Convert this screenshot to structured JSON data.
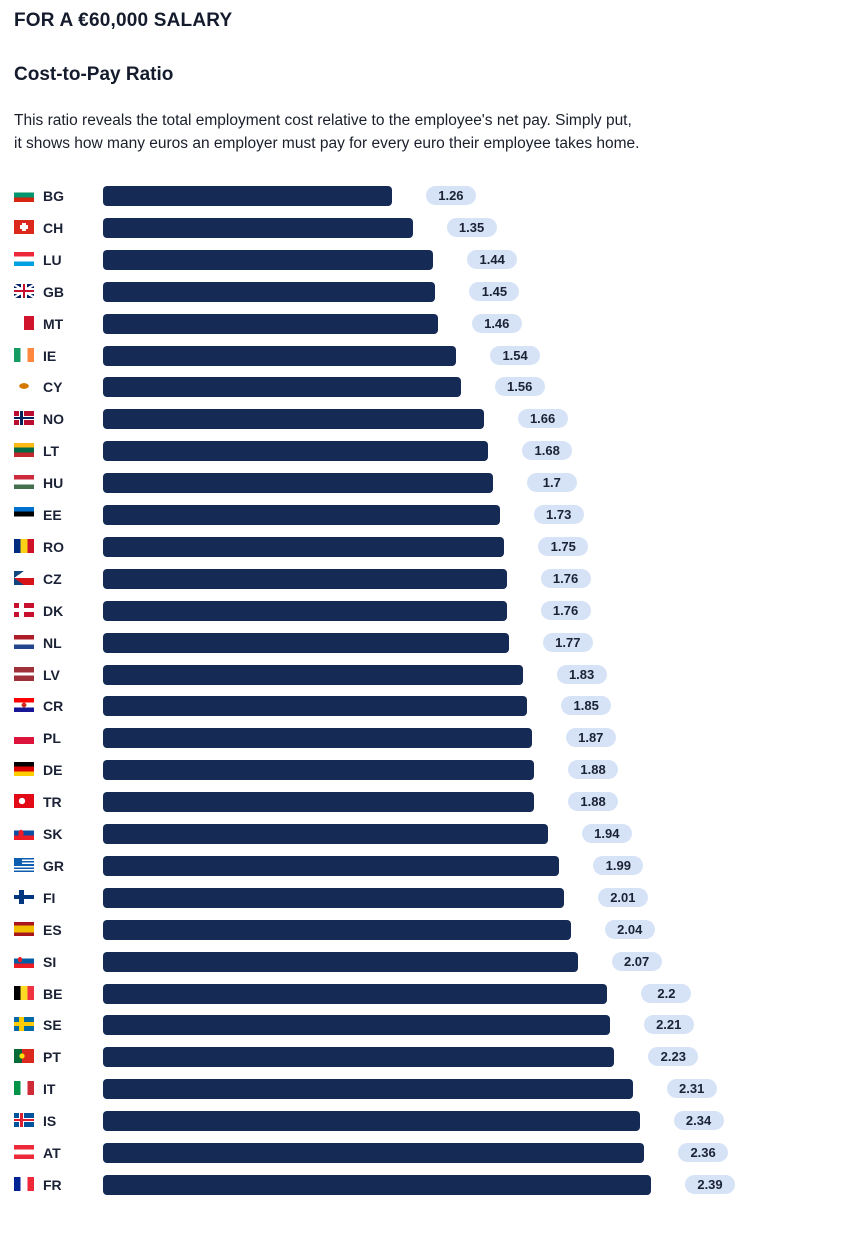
{
  "header": {
    "eyebrow": "FOR A €60,000 SALARY",
    "title": "Cost-to-Pay Ratio",
    "description_line1": "This ratio reveals the total employment cost relative to the employee's net pay. Simply put,",
    "description_line2": "it shows how many euros an employer must pay for every euro their employee takes home."
  },
  "colors": {
    "bar": "#152a55",
    "pill": "#d6e3f7",
    "text": "#141b2d"
  },
  "chart_data": {
    "type": "bar",
    "orientation": "horizontal",
    "title": "",
    "xlabel": "",
    "ylabel": "",
    "xlim": [
      0,
      2.5
    ],
    "grid": false,
    "categories": [
      "BG",
      "CH",
      "LU",
      "GB",
      "MT",
      "IE",
      "CY",
      "NO",
      "LT",
      "HU",
      "EE",
      "RO",
      "CZ",
      "DK",
      "NL",
      "LV",
      "CR",
      "PL",
      "DE",
      "TR",
      "SK",
      "GR",
      "FI",
      "ES",
      "SI",
      "BE",
      "SE",
      "PT",
      "IT",
      "IS",
      "AT",
      "FR"
    ],
    "values": [
      1.26,
      1.35,
      1.44,
      1.45,
      1.46,
      1.54,
      1.56,
      1.66,
      1.68,
      1.7,
      1.73,
      1.75,
      1.76,
      1.76,
      1.77,
      1.83,
      1.85,
      1.87,
      1.88,
      1.88,
      1.94,
      1.99,
      2.01,
      2.04,
      2.07,
      2.2,
      2.21,
      2.23,
      2.31,
      2.34,
      2.36,
      2.39
    ],
    "value_labels": [
      "1.26",
      "1.35",
      "1.44",
      "1.45",
      "1.46",
      "1.54",
      "1.56",
      "1.66",
      "1.68",
      "1.7",
      "1.73",
      "1.75",
      "1.76",
      "1.76",
      "1.77",
      "1.83",
      "1.85",
      "1.87",
      "1.88",
      "1.88",
      "1.94",
      "1.99",
      "2.01",
      "2.04",
      "2.07",
      "2.2",
      "2.21",
      "2.23",
      "2.31",
      "2.34",
      "2.36",
      "2.39"
    ],
    "flags": [
      "bg-flag-icon",
      "ch-flag-icon",
      "lu-flag-icon",
      "gb-flag-icon",
      "mt-flag-icon",
      "ie-flag-icon",
      "cy-flag-icon",
      "no-flag-icon",
      "lt-flag-icon",
      "hu-flag-icon",
      "ee-flag-icon",
      "ro-flag-icon",
      "cz-flag-icon",
      "dk-flag-icon",
      "nl-flag-icon",
      "lv-flag-icon",
      "cr-flag-icon",
      "pl-flag-icon",
      "de-flag-icon",
      "tr-flag-icon",
      "sk-flag-icon",
      "gr-flag-icon",
      "fi-flag-icon",
      "es-flag-icon",
      "si-flag-icon",
      "be-flag-icon",
      "se-flag-icon",
      "pt-flag-icon",
      "it-flag-icon",
      "is-flag-icon",
      "at-flag-icon",
      "fr-flag-icon"
    ]
  }
}
